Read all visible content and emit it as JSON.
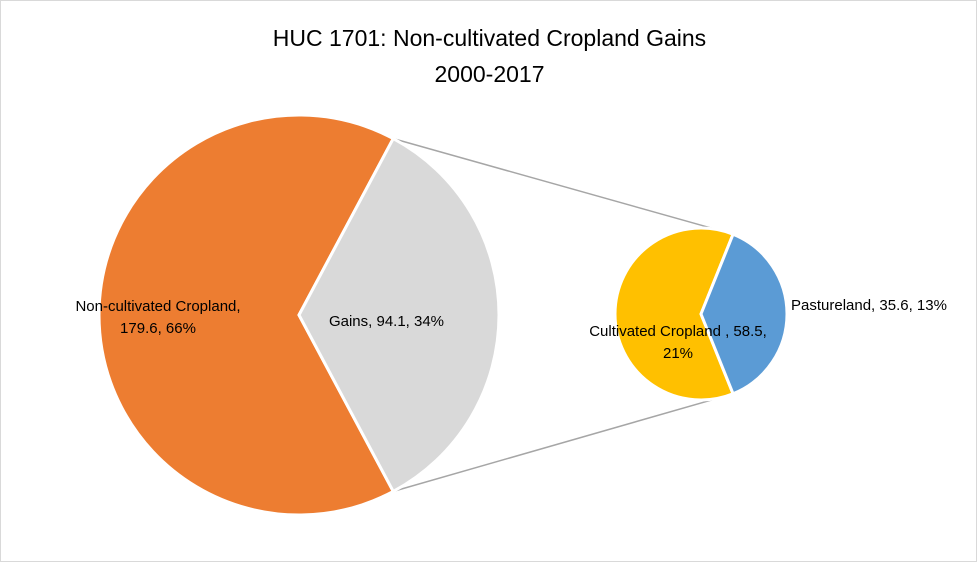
{
  "chart_data": {
    "type": "pie_of_pie",
    "title": "HUC 1701: Non-cultivated Cropland Gains",
    "subtitle": "2000-2017",
    "values": [
      179.6,
      94.1
    ],
    "value_labels": [
      "Non-cultivated Cropland, 179.6, 66%",
      "Gains, 94.1, 34%"
    ],
    "colors": [
      "#ed7d31",
      "#d9d9d9"
    ],
    "secondary": {
      "values": [
        58.5,
        35.6
      ],
      "value_labels": [
        "Cultivated Cropland , 58.5, 21%",
        "Pastureland, 35.6, 13%"
      ],
      "colors": [
        "#ffc000",
        "#5b9bd5"
      ]
    },
    "connector_color": "#a6a6a6"
  }
}
